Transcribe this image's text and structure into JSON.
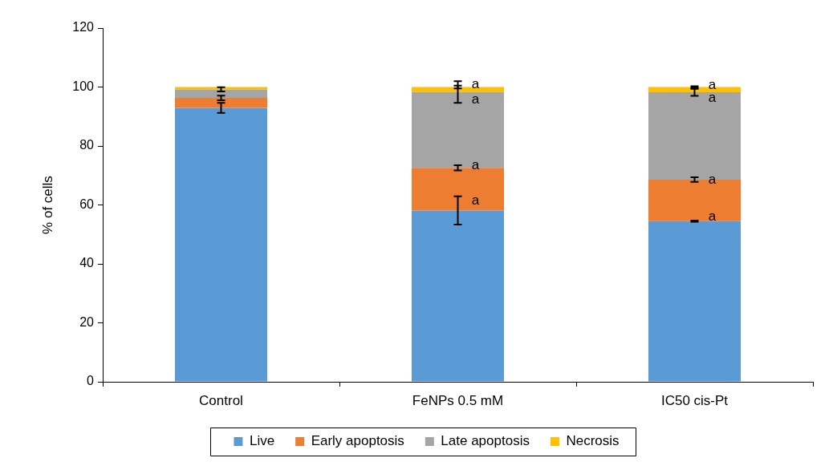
{
  "chart_data": {
    "type": "bar",
    "stacked": true,
    "categories": [
      "Control",
      "FeNPs 0.5 mM",
      "IC50 cis-Pt"
    ],
    "series": [
      {
        "name": "Live",
        "color": "#5b9bd5",
        "values": [
          92.9,
          58.1,
          54.5
        ],
        "errors": [
          1.7,
          4.8,
          0.2
        ]
      },
      {
        "name": "Early apoptosis",
        "color": "#ed7d31",
        "values": [
          3.4,
          14.5,
          14.1
        ],
        "errors": [
          0.8,
          0.9,
          0.8
        ]
      },
      {
        "name": "Late apoptosis",
        "color": "#a5a5a5",
        "values": [
          2.9,
          25.7,
          29.6
        ],
        "errors": [
          0.7,
          3.7,
          1.2
        ]
      },
      {
        "name": "Necrosis",
        "color": "#ffc000",
        "values": [
          0.8,
          1.7,
          1.8
        ],
        "errors": [
          null,
          0.5,
          0.3
        ]
      }
    ],
    "ylabel": "% of cells",
    "ylim": [
      0,
      120
    ],
    "yticks": [
      0,
      20,
      40,
      60,
      80,
      100,
      120
    ],
    "grid": false,
    "legend": "bottom",
    "annotations": [
      {
        "text": "a",
        "x": "FeNPs 0.5 mM",
        "y": 100.8
      },
      {
        "text": "a",
        "x": "FeNPs 0.5 mM",
        "y": 95.7
      },
      {
        "text": "a",
        "x": "FeNPs 0.5 mM",
        "y": 73.3
      },
      {
        "text": "a",
        "x": "FeNPs 0.5 mM",
        "y": 61.5
      },
      {
        "text": "a",
        "x": "IC50 cis-Pt",
        "y": 100.6
      },
      {
        "text": "a",
        "x": "IC50 cis-Pt",
        "y": 96.2
      },
      {
        "text": "a",
        "x": "IC50 cis-Pt",
        "y": 68.6
      },
      {
        "text": "a",
        "x": "IC50 cis-Pt",
        "y": 55.9
      }
    ]
  }
}
